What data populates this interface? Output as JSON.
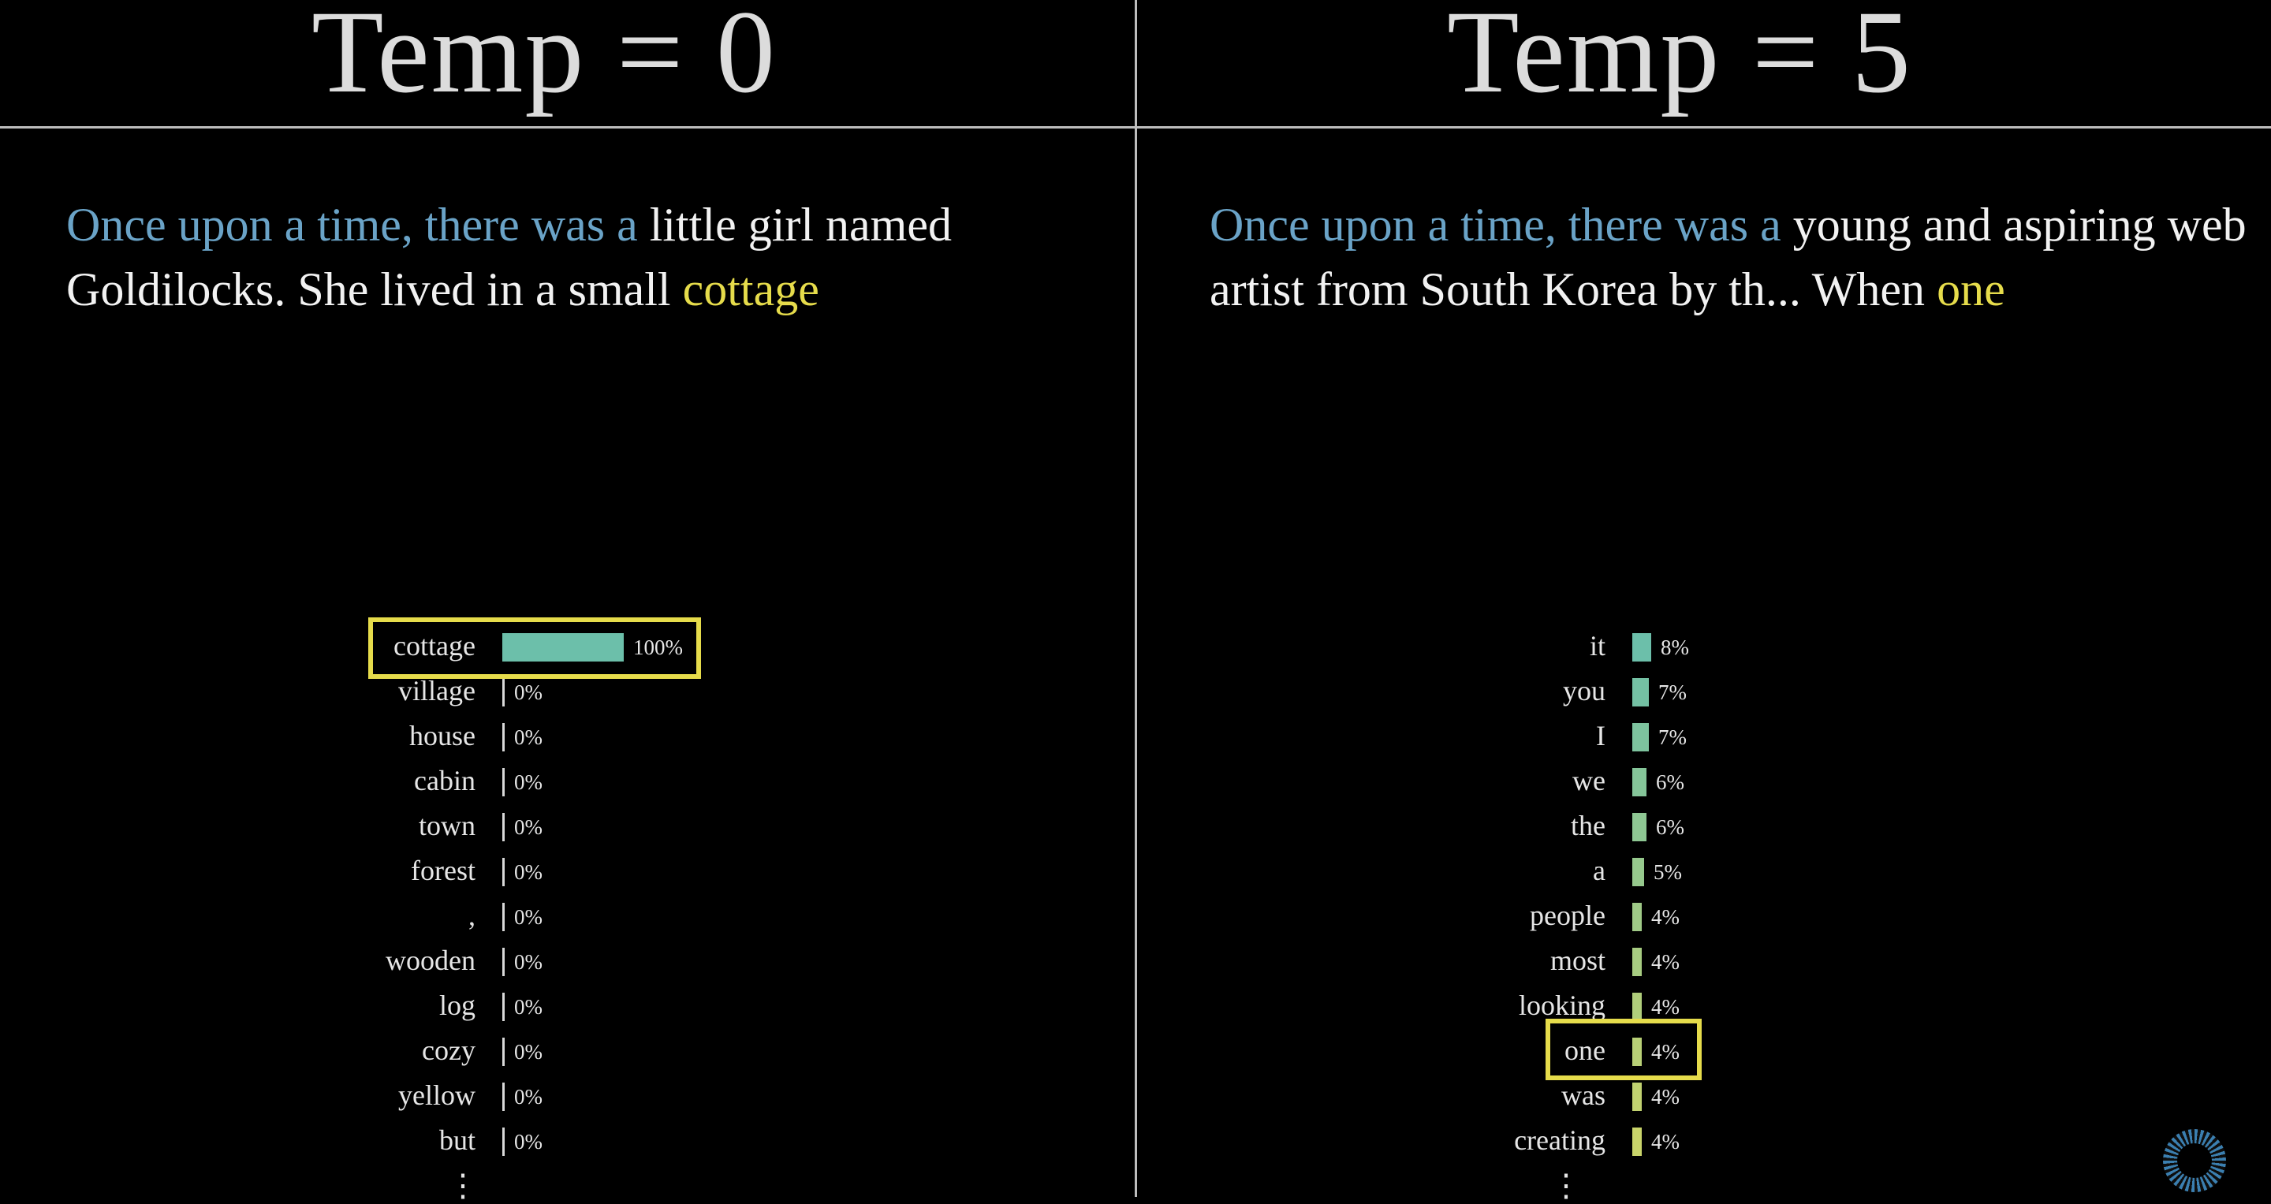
{
  "left": {
    "title": "Temp = 0",
    "passage": {
      "prompt": "Once upon a time, there was a",
      "continuation": " little girl named Goldilocks. She lived in a small ",
      "highlight": "cottage"
    },
    "tokens": [
      {
        "word": "cottage",
        "value": 1.0,
        "pct": "100%"
      },
      {
        "word": "village",
        "value": 0,
        "pct": "0%"
      },
      {
        "word": "house",
        "value": 0,
        "pct": "0%"
      },
      {
        "word": "cabin",
        "value": 0,
        "pct": "0%"
      },
      {
        "word": "town",
        "value": 0,
        "pct": "0%"
      },
      {
        "word": "forest",
        "value": 0,
        "pct": "0%"
      },
      {
        "word": ",",
        "value": 0,
        "pct": "0%"
      },
      {
        "word": "wooden",
        "value": 0,
        "pct": "0%"
      },
      {
        "word": "log",
        "value": 0,
        "pct": "0%"
      },
      {
        "word": "cozy",
        "value": 0,
        "pct": "0%"
      },
      {
        "word": "yellow",
        "value": 0,
        "pct": "0%"
      },
      {
        "word": "but",
        "value": 0,
        "pct": "0%"
      }
    ],
    "selected_index": 0,
    "more": "⋮"
  },
  "right": {
    "title": "Temp = 5",
    "passage": {
      "prompt": "Once upon a time, there was a",
      "continuation": " young and aspiring web artist from South Korea by th...  When ",
      "highlight": "one"
    },
    "tokens": [
      {
        "word": "it",
        "value": 0.08,
        "pct": "8%"
      },
      {
        "word": "you",
        "value": 0.07,
        "pct": "7%"
      },
      {
        "word": "I",
        "value": 0.07,
        "pct": "7%"
      },
      {
        "word": "we",
        "value": 0.06,
        "pct": "6%"
      },
      {
        "word": "the",
        "value": 0.06,
        "pct": "6%"
      },
      {
        "word": "a",
        "value": 0.05,
        "pct": "5%"
      },
      {
        "word": "people",
        "value": 0.04,
        "pct": "4%"
      },
      {
        "word": "most",
        "value": 0.04,
        "pct": "4%"
      },
      {
        "word": "looking",
        "value": 0.04,
        "pct": "4%"
      },
      {
        "word": "one",
        "value": 0.04,
        "pct": "4%"
      },
      {
        "word": "was",
        "value": 0.04,
        "pct": "4%"
      },
      {
        "word": "creating",
        "value": 0.04,
        "pct": "4%"
      }
    ],
    "selected_index": 9,
    "more": "⋮"
  },
  "colors": {
    "prompt": "#6aa3c7",
    "highlight": "#e6dc4b",
    "bar_high": "#6cbfaa",
    "bar_low": "#c9d46a"
  }
}
